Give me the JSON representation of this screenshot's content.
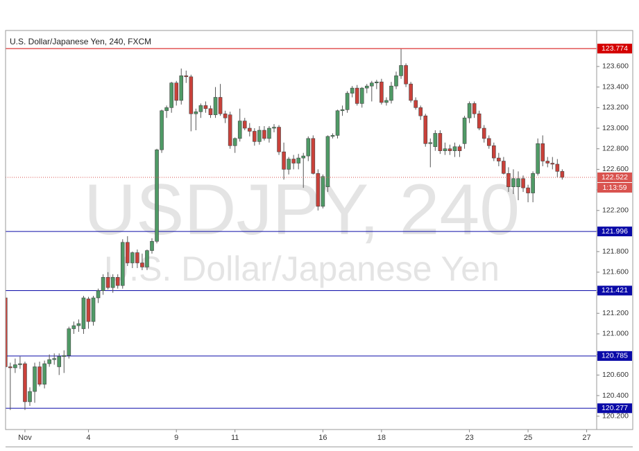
{
  "chart_data": {
    "type": "candlestick",
    "title": "U.S. Dollar/Japanese Yen, 240, FXCM",
    "watermark": "USDJPY, 240",
    "watermark_subtitle": "U.S. Dollar/Japanese Yen",
    "up_color": "#4f9a66",
    "down_color": "#c9413a",
    "categories": [
      null,
      null,
      null,
      null,
      "Nov",
      null,
      null,
      null,
      null,
      null,
      null,
      null,
      null,
      null,
      null,
      null,
      null,
      "4",
      null,
      null,
      null,
      null,
      null,
      null,
      null,
      null,
      null,
      null,
      null,
      null,
      null,
      null,
      null,
      null,
      null,
      "9",
      null,
      null,
      null,
      null,
      null,
      null,
      null,
      null,
      null,
      null,
      null,
      "11",
      null,
      null,
      null,
      null,
      null,
      null,
      null,
      null,
      null,
      null,
      null,
      null,
      null,
      null,
      null,
      null,
      null,
      "16",
      null,
      null,
      null,
      null,
      null,
      null,
      null,
      null,
      null,
      null,
      null,
      "18",
      null,
      null,
      null,
      null,
      null,
      null,
      null,
      null,
      null,
      null,
      null,
      null,
      null,
      null,
      null,
      null,
      null,
      "23",
      null,
      null,
      null,
      null,
      null,
      null,
      null,
      null,
      null,
      null,
      null,
      "25",
      null,
      null,
      null,
      null,
      null,
      null,
      null,
      null,
      null,
      null,
      null,
      "27"
    ],
    "open": [
      121.35,
      120.68,
      120.67,
      120.7,
      120.71,
      120.34,
      120.44,
      120.68,
      120.51,
      120.71,
      120.75,
      120.68,
      120.78,
      120.79,
      121.05,
      121.08,
      121.05,
      121.34,
      121.12,
      121.35,
      121.42,
      121.55,
      121.45,
      121.55,
      121.47,
      121.89,
      121.69,
      121.79,
      121.69,
      121.65,
      121.81,
      121.9,
      122.79,
      123.17,
      123.2,
      123.44,
      123.27,
      123.51,
      123.5,
      123.14,
      123.16,
      123.22,
      123.19,
      123.13,
      123.3,
      123.14,
      123.13,
      122.83,
      122.9,
      123.07,
      123.0,
      122.97,
      122.87,
      122.98,
      122.9,
      123.0,
      123.01,
      122.77,
      122.6,
      122.7,
      122.66,
      122.71,
      122.73,
      122.9,
      122.56,
      122.24,
      122.43,
      122.92,
      122.93,
      123.17,
      123.18,
      123.34,
      123.39,
      123.24,
      123.39,
      123.41,
      123.44,
      123.45,
      123.25,
      123.27,
      123.41,
      123.51,
      123.61,
      123.43,
      123.27,
      123.2,
      123.12,
      122.85,
      122.82,
      122.95,
      122.78,
      122.8,
      122.78,
      122.82,
      122.85,
      123.1,
      123.24,
      123.14,
      123.0,
      122.9,
      122.83,
      122.71,
      122.68,
      122.56,
      122.43,
      122.43,
      122.51,
      122.42,
      122.37,
      122.56,
      122.85,
      122.68,
      122.66,
      122.65,
      122.58,
      null,
      null,
      null,
      null,
      null
    ],
    "high": [
      121.38,
      120.72,
      120.76,
      120.78,
      120.73,
      120.48,
      120.72,
      120.73,
      120.74,
      120.8,
      120.81,
      120.81,
      120.84,
      121.07,
      121.12,
      121.14,
      121.37,
      121.36,
      121.37,
      121.44,
      121.58,
      121.6,
      121.58,
      121.58,
      121.92,
      121.95,
      121.8,
      121.82,
      121.78,
      121.82,
      121.93,
      122.8,
      123.18,
      123.22,
      123.45,
      123.46,
      123.58,
      123.56,
      123.52,
      123.19,
      123.24,
      123.26,
      123.22,
      123.4,
      123.43,
      123.17,
      123.16,
      122.91,
      123.19,
      123.1,
      123.05,
      123.0,
      123.02,
      123.02,
      123.02,
      123.04,
      123.03,
      122.86,
      122.72,
      122.74,
      122.75,
      122.76,
      122.92,
      122.93,
      122.6,
      122.55,
      122.93,
      122.95,
      123.18,
      123.22,
      123.36,
      123.41,
      123.42,
      123.4,
      123.43,
      123.46,
      123.47,
      123.48,
      123.3,
      123.45,
      123.55,
      123.77,
      123.63,
      123.45,
      123.3,
      123.22,
      123.14,
      122.9,
      122.98,
      122.98,
      122.86,
      122.84,
      122.86,
      122.84,
      123.12,
      123.26,
      123.26,
      123.17,
      123.03,
      122.93,
      122.86,
      122.76,
      122.72,
      122.62,
      122.6,
      122.58,
      122.54,
      122.45,
      122.58,
      122.9,
      122.93,
      122.72,
      122.72,
      122.7,
      122.6,
      null,
      null,
      null,
      null,
      null
    ],
    "low": [
      120.62,
      120.26,
      120.62,
      120.66,
      120.26,
      120.3,
      120.33,
      120.49,
      120.47,
      120.68,
      120.7,
      120.6,
      120.62,
      120.76,
      121.0,
      121.02,
      121.0,
      121.05,
      121.08,
      121.3,
      121.38,
      121.43,
      121.4,
      121.44,
      121.44,
      121.66,
      121.64,
      121.64,
      121.62,
      121.62,
      121.78,
      121.88,
      122.76,
      123.1,
      123.15,
      123.22,
      123.23,
      123.44,
      122.97,
      122.98,
      123.1,
      123.15,
      123.1,
      123.1,
      123.12,
      123.05,
      122.8,
      122.76,
      122.87,
      122.98,
      122.92,
      122.83,
      122.84,
      122.88,
      122.86,
      122.96,
      122.74,
      122.5,
      122.55,
      122.6,
      122.6,
      122.42,
      122.68,
      122.55,
      122.2,
      122.22,
      122.38,
      122.9,
      122.9,
      123.12,
      123.15,
      123.3,
      123.22,
      123.2,
      123.34,
      123.26,
      123.38,
      123.23,
      123.22,
      123.24,
      123.38,
      123.48,
      123.4,
      123.25,
      123.18,
      123.08,
      122.82,
      122.62,
      122.78,
      122.75,
      122.74,
      122.74,
      122.72,
      122.72,
      122.8,
      123.05,
      123.1,
      122.98,
      122.86,
      122.8,
      122.68,
      122.63,
      122.55,
      122.38,
      122.36,
      122.3,
      122.38,
      122.28,
      122.28,
      122.54,
      122.63,
      122.62,
      122.6,
      122.52,
      122.5,
      null,
      null,
      null,
      null,
      null
    ],
    "close": [
      120.68,
      120.67,
      120.7,
      120.71,
      120.34,
      120.44,
      120.68,
      120.51,
      120.71,
      120.75,
      120.76,
      120.78,
      120.79,
      121.05,
      121.08,
      121.1,
      121.35,
      121.12,
      121.35,
      121.42,
      121.55,
      121.45,
      121.55,
      121.47,
      121.89,
      121.69,
      121.79,
      121.69,
      121.65,
      121.81,
      121.9,
      122.79,
      123.17,
      123.2,
      123.44,
      123.27,
      123.51,
      123.5,
      123.14,
      123.16,
      123.22,
      123.19,
      123.13,
      123.3,
      123.14,
      123.1,
      122.83,
      122.9,
      123.07,
      123.0,
      122.97,
      122.87,
      122.98,
      122.9,
      123.0,
      123.01,
      122.77,
      122.6,
      122.7,
      122.66,
      122.71,
      122.73,
      122.9,
      122.56,
      122.24,
      122.53,
      122.92,
      122.93,
      123.17,
      123.18,
      123.34,
      123.39,
      123.24,
      123.39,
      123.41,
      123.44,
      123.45,
      123.25,
      123.27,
      123.41,
      123.51,
      123.61,
      123.43,
      123.27,
      123.2,
      123.12,
      122.85,
      122.86,
      122.95,
      122.78,
      122.8,
      122.78,
      122.82,
      122.78,
      123.1,
      123.24,
      123.14,
      123.0,
      122.9,
      122.83,
      122.71,
      122.68,
      122.56,
      122.43,
      122.51,
      122.51,
      122.42,
      122.37,
      122.56,
      122.85,
      122.68,
      122.66,
      122.65,
      122.58,
      122.522,
      null,
      null,
      null,
      null,
      null
    ],
    "ylim": [
      120.07,
      123.95
    ],
    "yticks": [
      {
        "value": 120.2,
        "label": "120.200"
      },
      {
        "value": 120.4,
        "label": "120.400"
      },
      {
        "value": 120.6,
        "label": "120.600"
      },
      {
        "value": 120.8,
        "label": "120.800"
      },
      {
        "value": 121.0,
        "label": "121.000"
      },
      {
        "value": 121.2,
        "label": "121.200"
      },
      {
        "value": 121.4,
        "label": "121.400"
      },
      {
        "value": 121.6,
        "label": "121.600"
      },
      {
        "value": 121.8,
        "label": "121.800"
      },
      {
        "value": 122.0,
        "label": "122.000"
      },
      {
        "value": 122.2,
        "label": "122.200"
      },
      {
        "value": 122.4,
        "label": "122.400"
      },
      {
        "value": 122.6,
        "label": "122.600"
      },
      {
        "value": 122.8,
        "label": "122.800"
      },
      {
        "value": 123.0,
        "label": "123.000"
      },
      {
        "value": 123.2,
        "label": "123.200"
      },
      {
        "value": 123.4,
        "label": "123.400"
      },
      {
        "value": 123.6,
        "label": "123.600"
      }
    ],
    "levels": [
      {
        "value": 123.774,
        "color": "#d40000"
      },
      {
        "value": 121.996,
        "color": "#0a0aa8"
      },
      {
        "value": 121.421,
        "color": "#0a0aa8"
      },
      {
        "value": 120.785,
        "color": "#0a0aa8"
      },
      {
        "value": 120.277,
        "color": "#0a0aa8"
      }
    ],
    "last_price": {
      "value": 122.522,
      "color": "#d9534f"
    },
    "countdown": "1:13:59"
  }
}
